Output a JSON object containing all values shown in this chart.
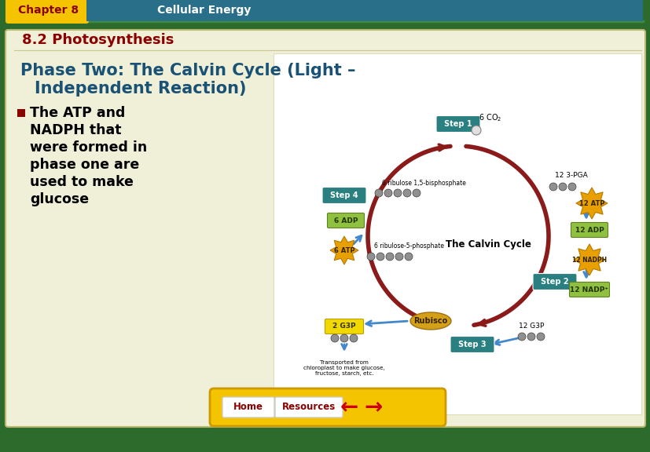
{
  "title_chapter": "Chapter 8",
  "title_subject": "Cellular Energy",
  "subtitle": "8.2 Photosynthesis",
  "bg_outer": "#2d6b2d",
  "bg_slide": "#f0f0d8",
  "header_yellow": "#f5c400",
  "header_teal": "#2a6f8a",
  "header_chapter_color": "#8b0000",
  "header_subject_color": "#ffffff",
  "subtitle_color": "#8b0000",
  "heading_color": "#1a5276",
  "bullet_color": "#000000",
  "bullet_marker_color": "#8b0000",
  "footer_bg": "#f5c400",
  "footer_btn_color": "#8b0000",
  "step_box_color": "#2a8080",
  "arrow_dark_red": "#8b1a1a",
  "arrow_blue": "#4488cc",
  "rubisco_color": "#d4a017",
  "nadph_starburst": "#e8a000",
  "adp_green": "#90c040",
  "nadp_green": "#90c040",
  "g3p_yellow": "#f0d800",
  "mol_circle_color": "#707070"
}
